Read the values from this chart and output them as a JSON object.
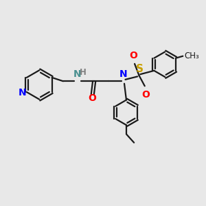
{
  "bg_color": "#e8e8e8",
  "bond_color": "#1a1a1a",
  "N_color": "#0000ff",
  "O_color": "#ff0000",
  "S_color": "#c8a000",
  "NH_color": "#4a9090",
  "H_color": "#808080",
  "line_width": 1.6,
  "font_size": 10,
  "figsize": [
    3.0,
    3.0
  ],
  "dpi": 100,
  "xlim": [
    0,
    10
  ],
  "ylim": [
    0,
    10
  ]
}
